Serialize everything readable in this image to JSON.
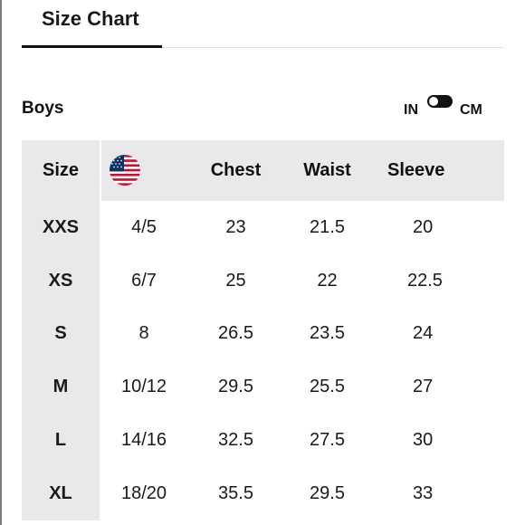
{
  "tab": {
    "label": "Size Chart"
  },
  "section": {
    "title": "Boys"
  },
  "unit_toggle": {
    "left_label": "IN",
    "right_label": "CM"
  },
  "table": {
    "headers": {
      "size": "Size",
      "us_flag_icon": "us-flag-icon",
      "chest": "Chest",
      "waist": "Waist",
      "sleeve": "Sleeve"
    },
    "rows": [
      {
        "size": "XXS",
        "us": "4/5",
        "chest": "23",
        "waist": "21.5",
        "sleeve": "20"
      },
      {
        "size": "XS",
        "us": "6/7",
        "chest": "25",
        "waist": "22",
        "sleeve": "22.5"
      },
      {
        "size": "S",
        "us": "8",
        "chest": "26.5",
        "waist": "23.5",
        "sleeve": "24"
      },
      {
        "size": "M",
        "us": "10/12",
        "chest": "29.5",
        "waist": "25.5",
        "sleeve": "27"
      },
      {
        "size": "L",
        "us": "14/16",
        "chest": "32.5",
        "waist": "27.5",
        "sleeve": "30"
      },
      {
        "size": "XL",
        "us": "18/20",
        "chest": "35.5",
        "waist": "29.5",
        "sleeve": "33"
      }
    ]
  },
  "colors": {
    "header_background": "#e9e9eb",
    "text": "#111111",
    "flag_red": "#c8102e",
    "flag_blue": "#0a3161"
  }
}
